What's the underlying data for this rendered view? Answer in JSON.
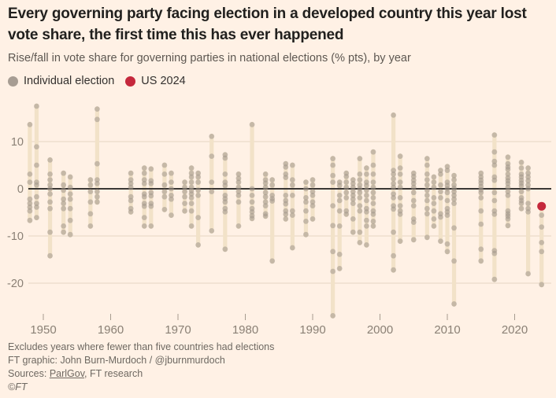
{
  "title": "Every governing party facing election in a developed country this year lost vote share, the first time this has ever happened",
  "subtitle": "Rise/fall in vote share for governing parties in national elections (% pts), by year",
  "legend": {
    "individual_label": "Individual election",
    "us2024_label": "US 2024"
  },
  "footer": {
    "note": "Excludes years where fewer than five countries had elections",
    "credit": "FT graphic: John Burn-Murdoch / @jburnmurdoch",
    "sources_prefix": "Sources: ",
    "source_link": "ParlGov",
    "sources_suffix": ", FT research",
    "copyright": "©FT"
  },
  "colors": {
    "background": "#FFF1E5",
    "title": "#21201e",
    "subtitle": "#5d5751",
    "axis_label": "#8a8075",
    "axis_tick": "#a79c8f",
    "gridline": "#e4d5c2",
    "zero_line": "#3b3734",
    "bar": "#f2e2c8",
    "dot": "#a1968a",
    "dot_legend": "#a79d93",
    "highlight": "#c5283c",
    "footer": "#6e6962"
  },
  "chart_data": {
    "type": "scatter",
    "title": "Rise/fall in vote share for governing parties in national elections (% pts), by year",
    "xlabel": "",
    "ylabel": "% pts change in vote share",
    "units": "% pts",
    "grid": true,
    "legend_position": "top-left",
    "xlim": [
      1946.5,
      2026
    ],
    "ylim": [
      -27.5,
      18.5
    ],
    "xticks": [
      1950,
      1960,
      1970,
      1980,
      1990,
      2000,
      2010,
      2020
    ],
    "yticks": [
      10,
      0,
      -10,
      -20
    ],
    "zero_line": true,
    "highlight": {
      "label": "US 2024",
      "year": 2024,
      "value": -3.7
    },
    "columns": [
      {
        "year": 1948,
        "values": [
          13.6,
          3.1,
          1.4,
          -2.2,
          -3.1,
          -3.9,
          -4.7,
          -6.7
        ]
      },
      {
        "year": 1949,
        "values": [
          17.5,
          8.9,
          5.0,
          1.4,
          0.8,
          -1.7,
          -3.1,
          -3.9,
          -6.1
        ]
      },
      {
        "year": 1951,
        "values": [
          6.1,
          3.1,
          1.9,
          0.8,
          0.0,
          -1.1,
          -2.8,
          -4.2,
          -9.2,
          -14.2
        ]
      },
      {
        "year": 1953,
        "values": [
          3.3,
          0.8,
          -0.3,
          -2.2,
          -3.1,
          -4.2,
          -7.9,
          -9.2
        ]
      },
      {
        "year": 1954,
        "values": [
          2.5,
          0.3,
          -1.1,
          -2.2,
          -4.2,
          -6.7,
          -9.7
        ]
      },
      {
        "year": 1957,
        "values": [
          1.9,
          0.8,
          -0.6,
          -2.8,
          -5.3,
          -7.9
        ]
      },
      {
        "year": 1958,
        "values": [
          16.9,
          14.7,
          5.3,
          1.9,
          1.1,
          -0.6,
          -1.7,
          -2.8
        ]
      },
      {
        "year": 1963,
        "values": [
          3.3,
          1.9,
          1.1,
          0.3,
          -1.7,
          -2.5,
          -4.2,
          -4.9
        ]
      },
      {
        "year": 1965,
        "values": [
          4.4,
          3.3,
          1.9,
          1.1,
          -1.1,
          -1.7,
          -3.1,
          -3.7,
          -6.1,
          -7.9
        ]
      },
      {
        "year": 1966,
        "values": [
          4.2,
          1.7,
          1.1,
          -0.8,
          -1.5,
          -3.1,
          -3.7,
          -7.9
        ]
      },
      {
        "year": 1968,
        "values": [
          5.0,
          3.1,
          0.8,
          -0.6,
          -1.7,
          -4.4
        ]
      },
      {
        "year": 1969,
        "values": [
          3.3,
          1.4,
          0.0,
          -1.4,
          -2.2,
          -5.6
        ]
      },
      {
        "year": 1971,
        "values": [
          1.4,
          0.3,
          -0.6,
          -1.7,
          -3.1,
          -4.7
        ]
      },
      {
        "year": 1972,
        "values": [
          4.4,
          3.3,
          2.5,
          1.4,
          0.3,
          -0.4,
          -1.1,
          -1.9,
          -3.1,
          -4.7,
          -7.9
        ]
      },
      {
        "year": 1973,
        "values": [
          3.3,
          2.5,
          1.4,
          -0.3,
          -1.4,
          -6.1,
          -11.9
        ]
      },
      {
        "year": 1975,
        "values": [
          11.1,
          6.9,
          1.4,
          -0.6,
          -8.9
        ]
      },
      {
        "year": 1977,
        "values": [
          7.2,
          6.5,
          3.1,
          1.4,
          0.7,
          -1.4,
          -2.1,
          -2.8,
          -4.2,
          -4.9,
          -12.8
        ]
      },
      {
        "year": 1979,
        "values": [
          3.1,
          2.2,
          1.4,
          0.3,
          -0.6,
          -1.4,
          -2.8,
          -7.9
        ]
      },
      {
        "year": 1981,
        "values": [
          13.6,
          0.0,
          -1.4,
          -2.8,
          -4.2,
          -4.9,
          -5.7,
          -6.3
        ]
      },
      {
        "year": 1983,
        "values": [
          3.1,
          1.9,
          1.2,
          0.3,
          -0.8,
          -1.7,
          -2.8,
          -3.6,
          -5.3,
          -5.8
        ]
      },
      {
        "year": 1984,
        "values": [
          1.9,
          0.8,
          -1.4,
          -2.1,
          -2.6,
          -15.3
        ]
      },
      {
        "year": 1986,
        "values": [
          5.3,
          4.6,
          3.1,
          2.4,
          -1.4,
          -2.5,
          -3.2,
          -4.7,
          -5.4,
          -6.4
        ]
      },
      {
        "year": 1987,
        "values": [
          5.0,
          1.9,
          0.8,
          -1.4,
          -4.7,
          -5.6,
          -12.5
        ]
      },
      {
        "year": 1989,
        "values": [
          1.4,
          0.0,
          -1.9,
          -2.8,
          -4.7,
          -6.9,
          -9.7
        ]
      },
      {
        "year": 1990,
        "values": [
          1.9,
          0.8,
          -0.6,
          -1.4,
          -2.8,
          -3.6,
          -6.4
        ]
      },
      {
        "year": 1993,
        "values": [
          6.4,
          5.0,
          2.8,
          1.4,
          -3.6,
          -7.8,
          -13.3,
          -17.5,
          -26.9
        ]
      },
      {
        "year": 1994,
        "values": [
          1.4,
          0.7,
          -1.4,
          -2.5,
          -4.7,
          -7.9,
          -13.9,
          -16.9
        ]
      },
      {
        "year": 1995,
        "values": [
          3.3,
          2.6,
          1.4,
          0.3,
          -0.8,
          -1.9,
          -4.7,
          -5.4
        ]
      },
      {
        "year": 1996,
        "values": [
          1.9,
          1.1,
          0.3,
          -0.6,
          -1.4,
          -2.2,
          -3.1,
          -6.4,
          -9.2
        ]
      },
      {
        "year": 1997,
        "values": [
          6.4,
          3.1,
          1.9,
          0.8,
          0.0,
          -0.8,
          -1.9,
          -3.6,
          -4.7,
          -9.2,
          -11.4
        ]
      },
      {
        "year": 1998,
        "values": [
          4.4,
          3.1,
          1.4,
          0.7,
          -0.3,
          -1.4,
          -2.5,
          -4.2,
          -4.9,
          -6.7,
          -7.9,
          -11.9
        ]
      },
      {
        "year": 1999,
        "values": [
          7.8,
          5.0,
          3.1,
          1.4,
          0.3,
          -0.8,
          -1.9,
          -3.1,
          -4.7,
          -5.4,
          -6.9,
          -7.9
        ]
      },
      {
        "year": 2002,
        "values": [
          15.6,
          3.9,
          3.1,
          2.1,
          1.1,
          0.3,
          -1.1,
          -1.9,
          -3.6,
          -4.3,
          -9.2,
          -14.2,
          -17.2
        ]
      },
      {
        "year": 2003,
        "values": [
          6.9,
          4.4,
          3.1,
          1.4,
          0.3,
          -1.9,
          -3.6,
          -4.7,
          -5.4,
          -11.1
        ]
      },
      {
        "year": 2005,
        "values": [
          3.3,
          2.6,
          1.8,
          1.1,
          0.3,
          -0.8,
          -2.5,
          -3.6,
          -6.4,
          -7.1,
          -10.8
        ]
      },
      {
        "year": 2007,
        "values": [
          6.4,
          5.0,
          3.1,
          1.9,
          0.8,
          -0.3,
          -1.4,
          -2.5,
          -4.2,
          -5.3,
          -10.3
        ]
      },
      {
        "year": 2008,
        "values": [
          2.5,
          1.4,
          0.3,
          -1.9,
          -3.1,
          -4.7,
          -6.4,
          -7.9
        ]
      },
      {
        "year": 2009,
        "values": [
          3.9,
          3.1,
          0.8,
          -0.6,
          -1.9,
          -5.3,
          -6.0,
          -11.1
        ]
      },
      {
        "year": 2010,
        "values": [
          4.7,
          3.9,
          1.4,
          0.7,
          0.0,
          -0.8,
          -2.5,
          -4.2,
          -4.9,
          -5.6,
          -11.7,
          -13.3
        ]
      },
      {
        "year": 2011,
        "values": [
          2.8,
          1.9,
          0.8,
          0.1,
          -0.6,
          -1.4,
          -2.2,
          -3.1,
          -8.3,
          -15.3,
          -24.4
        ]
      },
      {
        "year": 2015,
        "values": [
          3.3,
          2.5,
          1.8,
          1.2,
          0.5,
          -0.2,
          -0.8,
          -1.9,
          -4.7,
          -7.5,
          -12.8,
          -15.3
        ]
      },
      {
        "year": 2017,
        "values": [
          11.4,
          7.8,
          5.8,
          5.0,
          2.5,
          1.8,
          -0.8,
          -2.5,
          -4.7,
          -5.4,
          -13.1,
          -13.7,
          -19.2
        ]
      },
      {
        "year": 2019,
        "values": [
          6.7,
          5.3,
          4.6,
          4.1,
          3.1,
          2.3,
          1.7,
          1.1,
          0.3,
          -0.6,
          -1.4,
          -4.7,
          -5.3,
          -5.8,
          -6.4,
          -7.8
        ]
      },
      {
        "year": 2021,
        "values": [
          5.6,
          4.4,
          3.1,
          2.5,
          1.8,
          1.2,
          0.6,
          -0.6,
          -1.9,
          -2.5,
          -3.1,
          -4.2
        ]
      },
      {
        "year": 2022,
        "values": [
          4.4,
          3.3,
          2.5,
          1.7,
          0.8,
          0.0,
          -3.1,
          -4.2,
          -4.9,
          -18.0
        ]
      },
      {
        "year": 2024,
        "values": [
          -5.6,
          -8.1,
          -11.4,
          -13.3,
          -20.3
        ]
      }
    ]
  }
}
